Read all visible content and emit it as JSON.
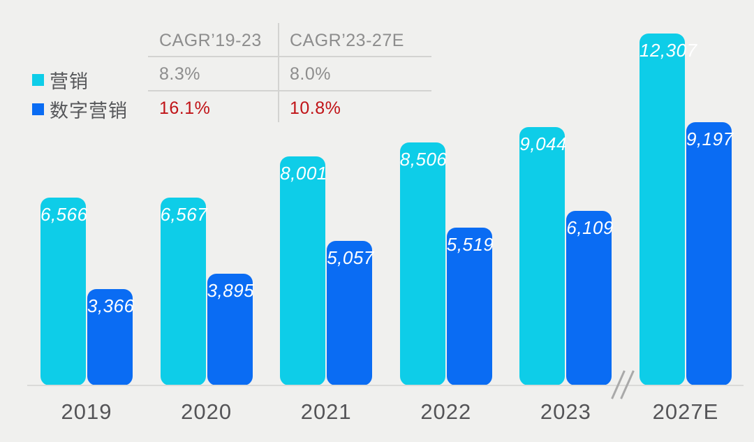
{
  "legend": {
    "items": [
      {
        "label": "营销",
        "color": "#0ecde8"
      },
      {
        "label": "数字营销",
        "color": "#0a6cf3"
      }
    ]
  },
  "cagr_table": {
    "columns": [
      "CAGR’19-23",
      "CAGR’23-27E"
    ],
    "rows": [
      {
        "series": "营销",
        "values": [
          "8.3%",
          "8.0%"
        ],
        "emphasis": false
      },
      {
        "series": "数字营销",
        "values": [
          "16.1%",
          "10.8%"
        ],
        "emphasis": true
      }
    ]
  },
  "chart_data": {
    "type": "bar",
    "categories": [
      "2019",
      "2020",
      "2021",
      "2022",
      "2023",
      "2027E"
    ],
    "series": [
      {
        "name": "营销",
        "color": "#0ecde8",
        "values": [
          6566,
          6567,
          8001,
          8506,
          9044,
          12307
        ],
        "labels": [
          "6,566",
          "6,567",
          "8,001",
          "8,506",
          "9,044",
          "12,307"
        ]
      },
      {
        "name": "数字营销",
        "color": "#0a6cf3",
        "values": [
          3366,
          3895,
          5057,
          5519,
          6109,
          9197
        ],
        "labels": [
          "3,366",
          "3,895",
          "5,057",
          "5,519",
          "6,109",
          "9,197"
        ]
      }
    ],
    "title": "",
    "xlabel": "",
    "ylabel": "",
    "ylim": [
      0,
      12600
    ],
    "grid": false,
    "legend_position": "top-left",
    "value_labels": "inside-top",
    "axis_break_between": [
      "2023",
      "2027E"
    ],
    "notes": "x-axis break marks (//) on baseline before 2027E; value-axis hidden"
  },
  "colors": {
    "background": "#f0f0ee",
    "cyan_series": "#0ecde8",
    "blue_series": "#0a6cf3",
    "axis_text": "#545457",
    "legend_text": "#56575a",
    "table_text": "#8d8d8d",
    "table_red": "#c01317",
    "divider_line": "#d3d3d1",
    "baseline": "#dadad8",
    "bar_value_text": "#ffffff"
  }
}
